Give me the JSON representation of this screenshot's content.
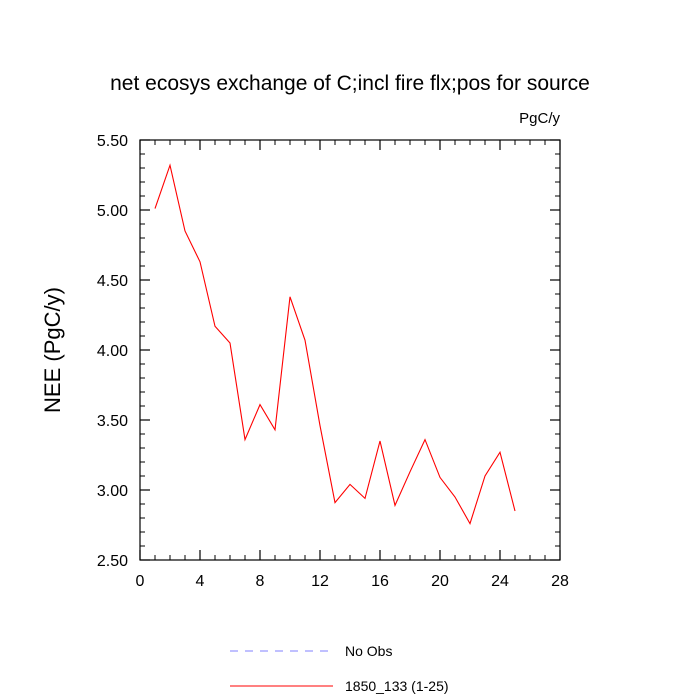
{
  "chart_data": {
    "type": "line",
    "title": "net ecosys exchange of C;incl fire flx;pos for source",
    "units_label": "PgC/y",
    "xlabel": "",
    "ylabel": "NEE  (PgC/y)",
    "xlim": [
      0,
      28
    ],
    "ylim": [
      2.5,
      5.5
    ],
    "x_ticks": [
      0,
      4,
      8,
      12,
      16,
      20,
      24,
      28
    ],
    "x_tick_labels": [
      "0",
      "4",
      "8",
      "12",
      "16",
      "20",
      "24",
      "28"
    ],
    "y_ticks": [
      2.5,
      3.0,
      3.5,
      4.0,
      4.5,
      5.0,
      5.5
    ],
    "y_tick_labels": [
      "2.50",
      "3.00",
      "3.50",
      "4.00",
      "4.50",
      "5.00",
      "5.50"
    ],
    "grid": false,
    "legend_position": "bottom",
    "series": [
      {
        "name": "1850_133 (1-25)",
        "color": "#ff0000",
        "style": "solid",
        "x": [
          1,
          2,
          3,
          4,
          5,
          6,
          7,
          8,
          9,
          10,
          11,
          12,
          13,
          14,
          15,
          16,
          17,
          18,
          19,
          20,
          21,
          22,
          23,
          24,
          25
        ],
        "y": [
          5.01,
          5.32,
          4.85,
          4.63,
          4.17,
          4.05,
          3.36,
          3.61,
          3.43,
          4.38,
          4.07,
          3.46,
          2.91,
          3.04,
          2.94,
          3.35,
          2.89,
          3.13,
          3.36,
          3.09,
          2.95,
          2.76,
          3.1,
          3.27,
          2.85
        ]
      }
    ],
    "legend": [
      {
        "label": "No Obs",
        "color": "#8080ff",
        "style": "dashed"
      },
      {
        "label": "1850_133 (1-25)",
        "color": "#ff0000",
        "style": "solid"
      }
    ]
  }
}
